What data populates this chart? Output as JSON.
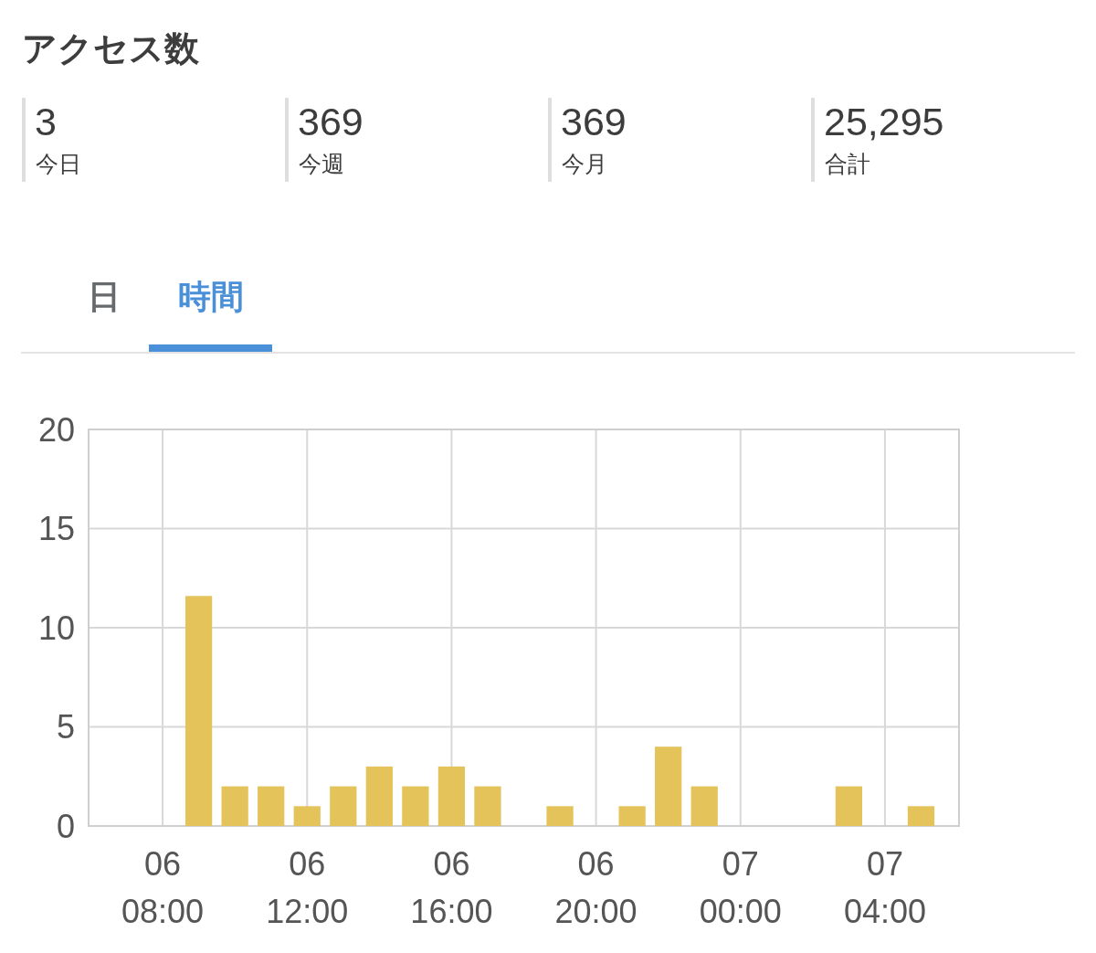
{
  "chart_data": [
    {
      "type": "other",
      "title": "アクセス数",
      "annotations": [
        "3",
        "今日",
        "369",
        "今週",
        "369",
        "今月",
        "25,295",
        "合計"
      ]
    },
    {
      "type": "bar",
      "annotations": [
        "日",
        "時間"
      ],
      "categories": [
        null,
        null,
        "06\n08:00",
        null,
        null,
        null,
        "06\n12:00",
        null,
        null,
        null,
        "06\n16:00",
        null,
        null,
        null,
        "06\n20:00",
        null,
        null,
        null,
        "07\n00:00",
        null,
        null,
        null,
        "07\n04:00",
        null
      ],
      "values": [
        null,
        null,
        null,
        11.6,
        2,
        2,
        1,
        2,
        3,
        2,
        3,
        2,
        null,
        1,
        null,
        1,
        4,
        2,
        null,
        null,
        null,
        2,
        null,
        1
      ],
      "color": "#e3c35a",
      "ylim": [
        0,
        20
      ],
      "yticks": [
        0,
        5,
        10,
        15,
        20
      ],
      "grid": true
    }
  ]
}
